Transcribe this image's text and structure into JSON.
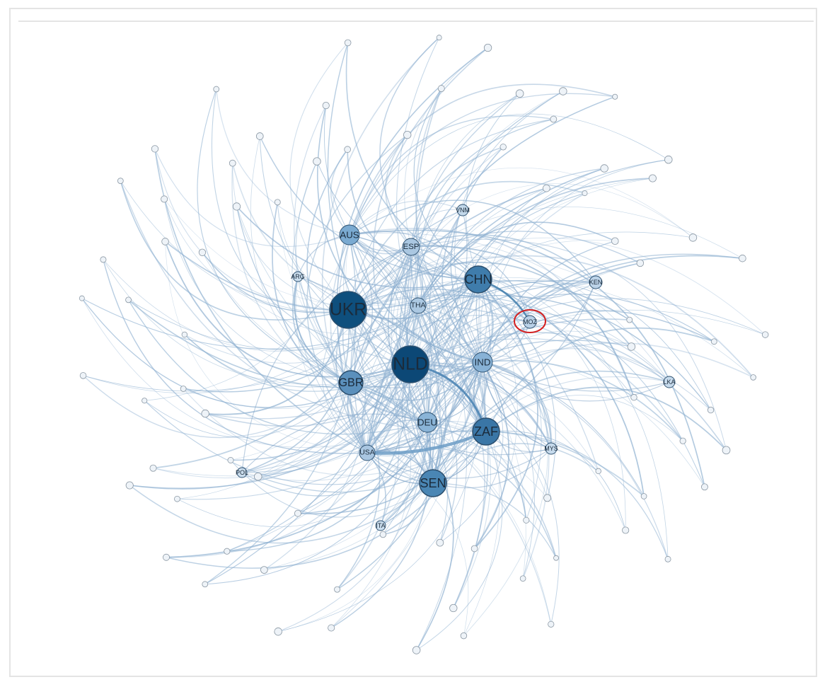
{
  "nodes": [
    {
      "label": "UKR"
    },
    {
      "label": "NLD"
    },
    {
      "label": "CHN"
    },
    {
      "label": "ZAF"
    },
    {
      "label": "SEN"
    },
    {
      "label": "GBR"
    },
    {
      "label": "AUS"
    },
    {
      "label": "IND"
    },
    {
      "label": "DEU"
    },
    {
      "label": "USA"
    },
    {
      "label": "ESP"
    },
    {
      "label": "THA"
    },
    {
      "label": "MOZ"
    },
    {
      "label": "KEN"
    },
    {
      "label": "VNM"
    },
    {
      "label": "LKA"
    },
    {
      "label": "MYS"
    },
    {
      "label": "ITA"
    },
    {
      "label": "POL"
    },
    {
      "label": "ARG"
    }
  ]
}
